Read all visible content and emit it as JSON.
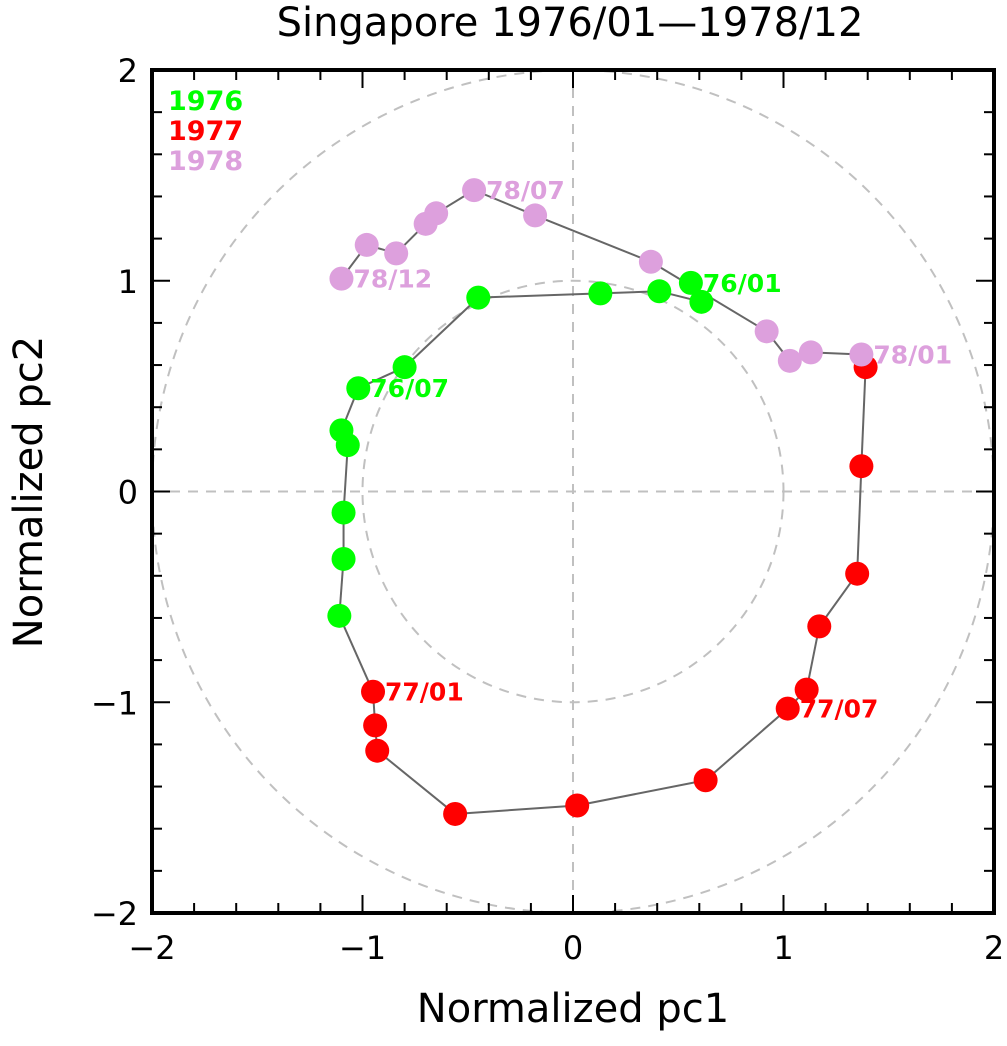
{
  "chart_data": {
    "type": "scatter",
    "title": "Singapore 1976/01—1978/12",
    "xlabel": "Normalized pc1",
    "ylabel": "Normalized pc2",
    "xlim": [
      -2,
      2
    ],
    "ylim": [
      -2,
      2
    ],
    "xticks": [
      -2,
      -1,
      0,
      1,
      2
    ],
    "yticks": [
      -2,
      -1,
      0,
      1,
      2
    ],
    "xtick_labels": [
      "−2",
      "−1",
      "0",
      "1",
      "2"
    ],
    "ytick_labels": [
      "−2",
      "−1",
      "0",
      "1",
      "2"
    ],
    "minor_tick_step": 0.2,
    "reference_circles": [
      1,
      2
    ],
    "reference_lines": {
      "x": 0,
      "y": 0
    },
    "connecting_line_color": "#666666",
    "legend_placement": "top-left",
    "series": [
      {
        "name": "1976",
        "color": "#00ff00",
        "points": [
          {
            "month": "76/01",
            "x": 0.56,
            "y": 0.99,
            "label": "76/01"
          },
          {
            "month": "76/02",
            "x": 0.61,
            "y": 0.9
          },
          {
            "month": "76/03",
            "x": 0.41,
            "y": 0.95
          },
          {
            "month": "76/04",
            "x": 0.13,
            "y": 0.94
          },
          {
            "month": "76/05",
            "x": -0.45,
            "y": 0.92
          },
          {
            "month": "76/06",
            "x": -0.8,
            "y": 0.59
          },
          {
            "month": "76/07",
            "x": -1.02,
            "y": 0.49,
            "label": "76/07"
          },
          {
            "month": "76/08",
            "x": -1.1,
            "y": 0.29
          },
          {
            "month": "76/09",
            "x": -1.07,
            "y": 0.22
          },
          {
            "month": "76/10",
            "x": -1.09,
            "y": -0.1
          },
          {
            "month": "76/11",
            "x": -1.09,
            "y": -0.32
          },
          {
            "month": "76/12",
            "x": -1.11,
            "y": -0.59
          }
        ]
      },
      {
        "name": "1977",
        "color": "#ff0000",
        "points": [
          {
            "month": "77/01",
            "x": -0.95,
            "y": -0.95,
            "label": "77/01"
          },
          {
            "month": "77/02",
            "x": -0.94,
            "y": -1.11
          },
          {
            "month": "77/03",
            "x": -0.93,
            "y": -1.23
          },
          {
            "month": "77/04",
            "x": -0.56,
            "y": -1.53
          },
          {
            "month": "77/05",
            "x": 0.02,
            "y": -1.49
          },
          {
            "month": "77/06",
            "x": 0.63,
            "y": -1.37
          },
          {
            "month": "77/07",
            "x": 1.02,
            "y": -1.03,
            "label": "77/07"
          },
          {
            "month": "77/08",
            "x": 1.11,
            "y": -0.94
          },
          {
            "month": "77/09",
            "x": 1.17,
            "y": -0.64
          },
          {
            "month": "77/10",
            "x": 1.35,
            "y": -0.39
          },
          {
            "month": "77/11",
            "x": 1.37,
            "y": 0.12
          },
          {
            "month": "77/12",
            "x": 1.39,
            "y": 0.59
          }
        ]
      },
      {
        "name": "1978",
        "color": "#dda0dd",
        "points": [
          {
            "month": "78/01",
            "x": 1.37,
            "y": 0.65,
            "label": "78/01"
          },
          {
            "month": "78/02",
            "x": 1.13,
            "y": 0.66
          },
          {
            "month": "78/03",
            "x": 1.03,
            "y": 0.62
          },
          {
            "month": "78/04",
            "x": 0.92,
            "y": 0.76
          },
          {
            "month": "78/05",
            "x": 0.37,
            "y": 1.09
          },
          {
            "month": "78/06",
            "x": -0.18,
            "y": 1.31
          },
          {
            "month": "78/07",
            "x": -0.47,
            "y": 1.43,
            "label": "78/07"
          },
          {
            "month": "78/08",
            "x": -0.65,
            "y": 1.32
          },
          {
            "month": "78/09",
            "x": -0.7,
            "y": 1.27
          },
          {
            "month": "78/10",
            "x": -0.84,
            "y": 1.13
          },
          {
            "month": "78/11",
            "x": -0.98,
            "y": 1.17
          },
          {
            "month": "78/12",
            "x": -1.1,
            "y": 1.01,
            "label": "78/12"
          }
        ]
      }
    ]
  }
}
